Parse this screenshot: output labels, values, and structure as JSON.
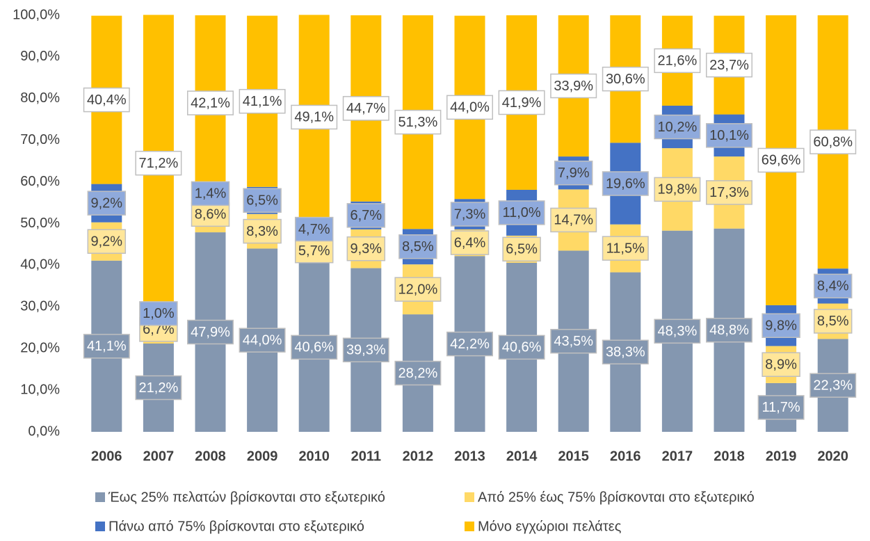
{
  "chart_data": {
    "type": "stacked_bar",
    "categories": [
      "2006",
      "2007",
      "2008",
      "2009",
      "2010",
      "2011",
      "2012",
      "2013",
      "2014",
      "2015",
      "2016",
      "2017",
      "2018",
      "2019",
      "2020"
    ],
    "series": [
      {
        "name": "Έως 25% πελατών βρίσκονται στο εξωτερικό",
        "color": "#8497b0",
        "values": [
          41.1,
          21.2,
          47.9,
          44.0,
          40.6,
          39.3,
          28.2,
          42.2,
          40.6,
          43.5,
          38.3,
          48.3,
          48.8,
          11.7,
          22.3
        ],
        "value_labels": [
          "41,1%",
          "21,2%",
          "47,9%",
          "44,0%",
          "40,6%",
          "39,3%",
          "28,2%",
          "42,2%",
          "40,6%",
          "43,5%",
          "38,3%",
          "48,3%",
          "48,8%",
          "11,7%",
          "22,3%"
        ]
      },
      {
        "name": "Από 25% έως 75% βρίσκονται στο εξωτερικό",
        "color": "#ffd966",
        "values": [
          9.2,
          6.7,
          8.6,
          8.3,
          5.7,
          9.3,
          12.0,
          6.4,
          6.5,
          14.7,
          11.5,
          19.8,
          17.3,
          8.9,
          8.5
        ],
        "value_labels": [
          "9,2%",
          "6,7%",
          "8,6%",
          "8,3%",
          "5,7%",
          "9,3%",
          "12,0%",
          "6,4%",
          "6,5%",
          "14,7%",
          "11,5%",
          "19,8%",
          "17,3%",
          "8,9%",
          "8,5%"
        ]
      },
      {
        "name": "Πάνω από 75% βρίσκονται στο εξωτερικό",
        "color": "#4472c4",
        "values": [
          9.2,
          1.0,
          1.4,
          6.5,
          4.7,
          6.7,
          8.5,
          7.3,
          11.0,
          7.9,
          19.6,
          10.2,
          10.1,
          9.8,
          8.4
        ],
        "value_labels": [
          "9,2%",
          "1,0%",
          "1,4%",
          "6,5%",
          "4,7%",
          "6,7%",
          "8,5%",
          "7,3%",
          "11,0%",
          "7,9%",
          "19,6%",
          "10,2%",
          "10,1%",
          "9,8%",
          "8,4%"
        ]
      },
      {
        "name": "Μόνο εγχώριοι πελάτες",
        "color": "#ffc000",
        "values": [
          40.4,
          71.2,
          42.1,
          41.1,
          49.1,
          44.7,
          51.3,
          44.0,
          41.9,
          33.9,
          30.6,
          21.6,
          23.7,
          69.6,
          60.8
        ],
        "value_labels": [
          "40,4%",
          "71,2%",
          "42,1%",
          "41,1%",
          "49,1%",
          "44,7%",
          "51,3%",
          "44,0%",
          "41,9%",
          "33,9%",
          "30,6%",
          "21,6%",
          "23,7%",
          "69,6%",
          "60,8%"
        ]
      }
    ],
    "ylim": [
      0,
      100
    ],
    "yticks": [
      {
        "value": 0,
        "label": "0,0%"
      },
      {
        "value": 10,
        "label": "10,0%"
      },
      {
        "value": 20,
        "label": "20,0%"
      },
      {
        "value": 30,
        "label": "30,0%"
      },
      {
        "value": 40,
        "label": "40,0%"
      },
      {
        "value": 50,
        "label": "50,0%"
      },
      {
        "value": 60,
        "label": "60,0%"
      },
      {
        "value": 70,
        "label": "70,0%"
      },
      {
        "value": 80,
        "label": "80,0%"
      },
      {
        "value": 90,
        "label": "90,0%"
      },
      {
        "value": 100,
        "label": "100,0%"
      }
    ],
    "legend": "bottom"
  }
}
